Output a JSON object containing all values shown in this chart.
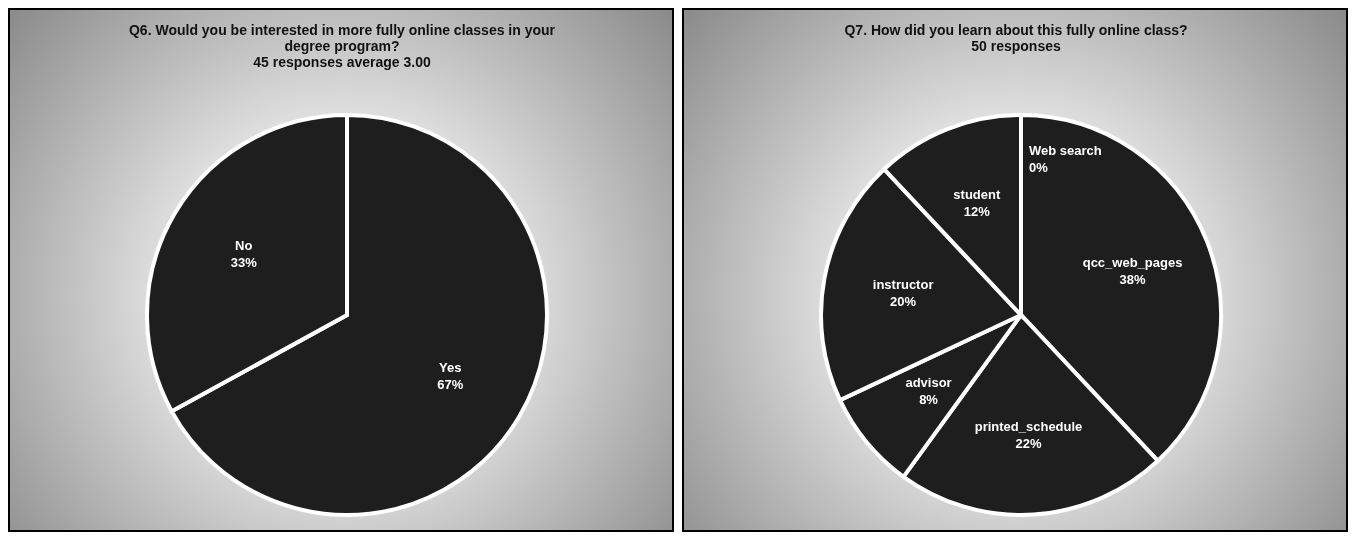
{
  "chart_data": [
    {
      "type": "pie",
      "title": "Q6. Would you be interested in more fully online classes in your degree program?",
      "subtitle": "45 responses average 3.00",
      "categories": [
        "Yes",
        "No"
      ],
      "values": [
        67,
        33
      ],
      "colors": [
        "#1e1e1e",
        "#1e1e1e"
      ],
      "value_labels": [
        "67%",
        "33%"
      ],
      "legend": false
    },
    {
      "type": "pie",
      "title": "Q7. How did you learn about this fully online class?",
      "subtitle": "50 responses",
      "categories": [
        "qcc_web_pages",
        "printed_schedule",
        "advisor",
        "instructor",
        "student",
        "Web search"
      ],
      "values": [
        38,
        22,
        8,
        20,
        12,
        0
      ],
      "colors": [
        "#1e1e1e",
        "#1e1e1e",
        "#1e1e1e",
        "#1e1e1e",
        "#1e1e1e",
        "#1e1e1e"
      ],
      "value_labels": [
        "38%",
        "22%",
        "8%",
        "20%",
        "12%",
        "0%"
      ],
      "legend": false
    }
  ]
}
